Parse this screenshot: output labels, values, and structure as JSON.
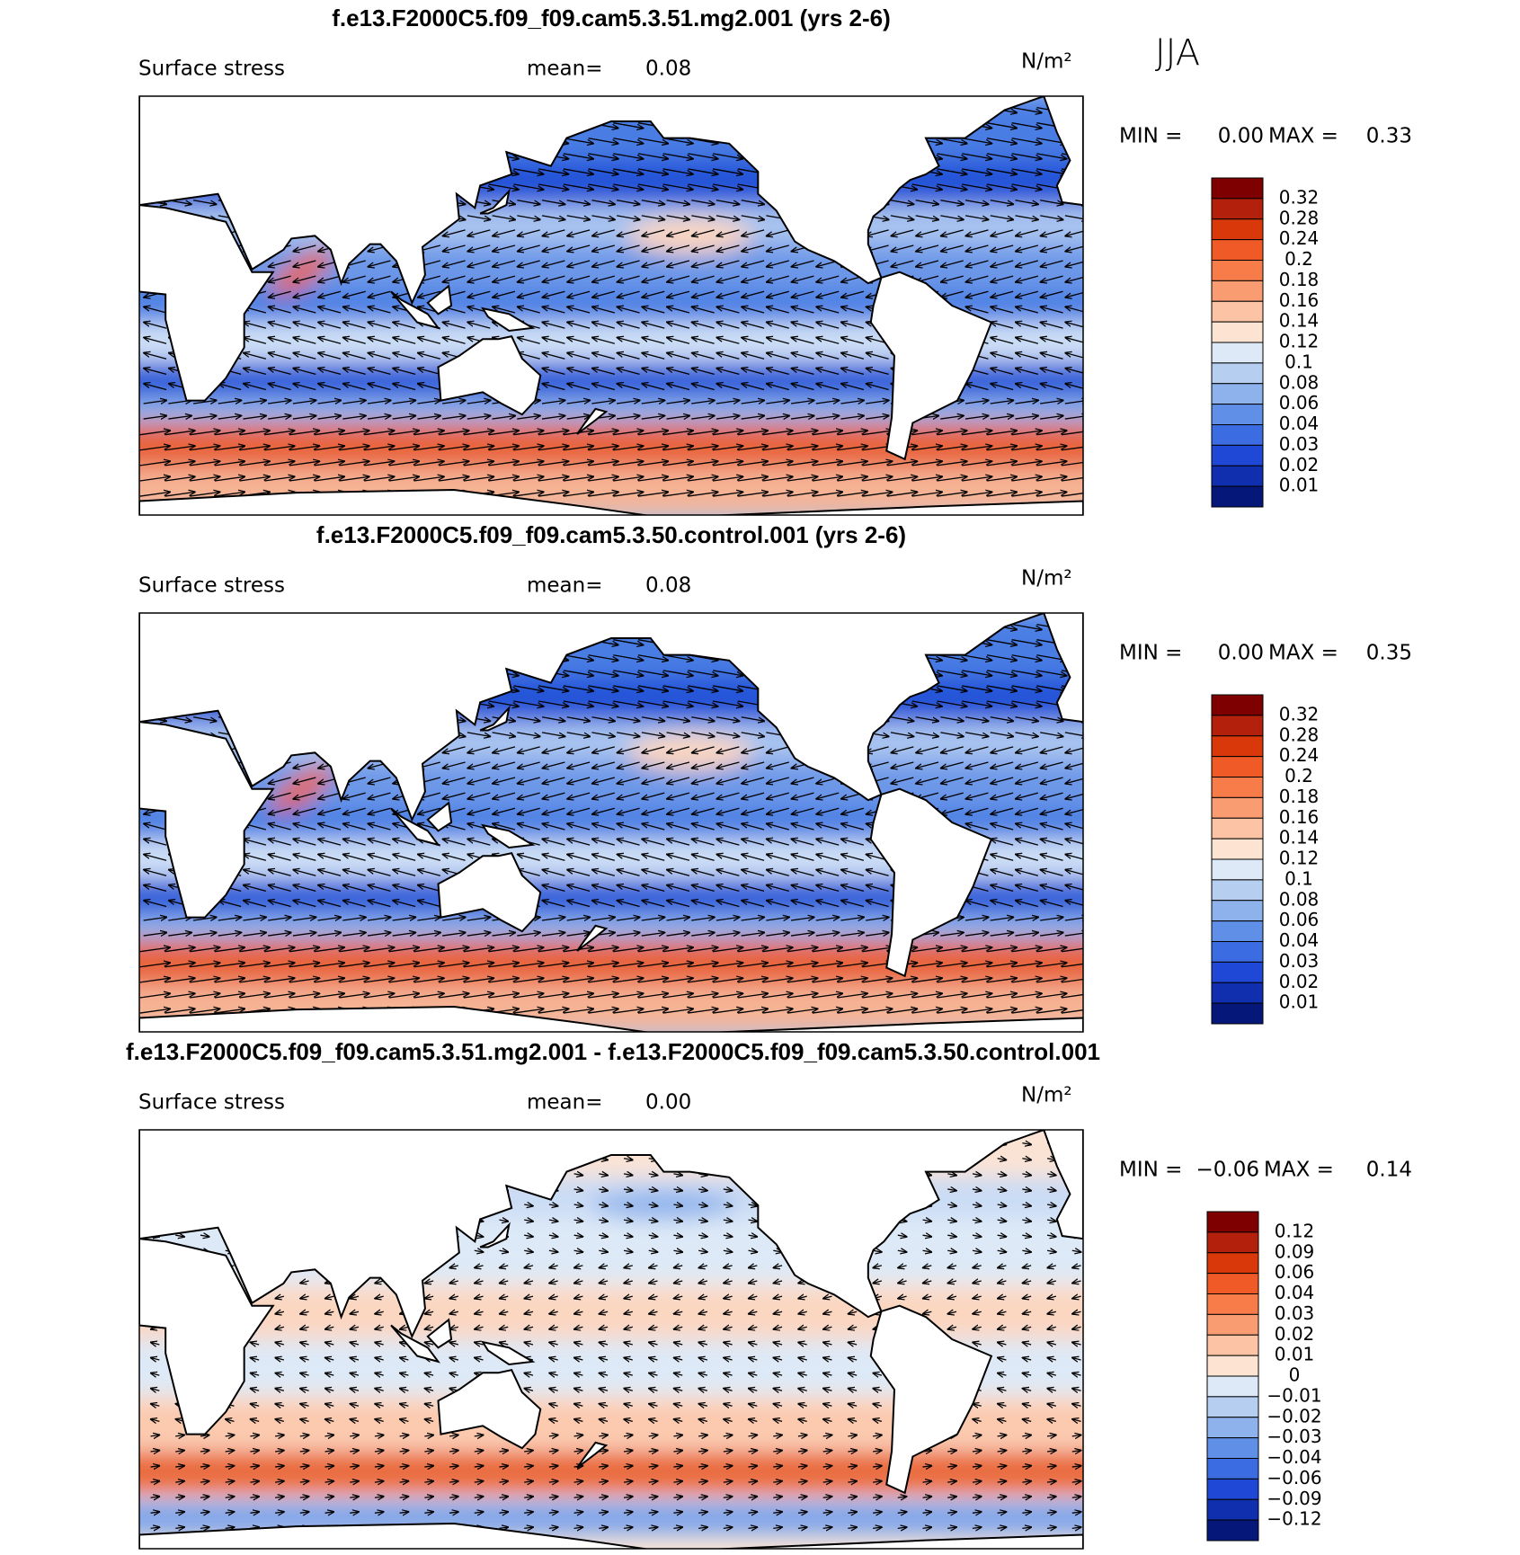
{
  "season": "JJA",
  "panels": [
    {
      "title": "f.e13.F2000C5.f09_f09.cam5.3.51.mg2.001 (yrs 2-6)",
      "field": "Surface stress",
      "mean_label": "mean=",
      "mean": "0.08",
      "units": "N/m²",
      "min_label": "MIN =",
      "min": "0.00",
      "max_label": "MAX =",
      "max": "0.33",
      "colorbar": {
        "labels": [
          "0.32",
          "0.28",
          "0.24",
          "0.2",
          "0.18",
          "0.16",
          "0.14",
          "0.12",
          "0.1",
          "0.08",
          "0.06",
          "0.04",
          "0.03",
          "0.02",
          "0.01"
        ],
        "colors": [
          "#7f0000",
          "#b3200c",
          "#d9380b",
          "#ef5a26",
          "#f77c4a",
          "#f99c72",
          "#fcc3a4",
          "#fde4d2",
          "#dde9f7",
          "#b6cff1",
          "#8eb2ec",
          "#5f8fe6",
          "#3c6ce2",
          "#1f48d6",
          "#0f2fae",
          "#06177a"
        ]
      }
    },
    {
      "title": "f.e13.F2000C5.f09_f09.cam5.3.50.control.001 (yrs 2-6)",
      "field": "Surface stress",
      "mean_label": "mean=",
      "mean": "0.08",
      "units": "N/m²",
      "min_label": "MIN =",
      "min": "0.00",
      "max_label": "MAX =",
      "max": "0.35",
      "colorbar": {
        "labels": [
          "0.32",
          "0.28",
          "0.24",
          "0.2",
          "0.18",
          "0.16",
          "0.14",
          "0.12",
          "0.1",
          "0.08",
          "0.06",
          "0.04",
          "0.03",
          "0.02",
          "0.01"
        ],
        "colors": [
          "#7f0000",
          "#b3200c",
          "#d9380b",
          "#ef5a26",
          "#f77c4a",
          "#f99c72",
          "#fcc3a4",
          "#fde4d2",
          "#dde9f7",
          "#b6cff1",
          "#8eb2ec",
          "#5f8fe6",
          "#3c6ce2",
          "#1f48d6",
          "#0f2fae",
          "#06177a"
        ]
      }
    },
    {
      "title": "f.e13.F2000C5.f09_f09.cam5.3.51.mg2.001 - f.e13.F2000C5.f09_f09.cam5.3.50.control.001",
      "field": "Surface stress",
      "mean_label": "mean=",
      "mean": "0.00",
      "units": "N/m²",
      "min_label": "MIN =",
      "min": "−0.06",
      "max_label": "MAX =",
      "max": "0.14",
      "colorbar": {
        "labels": [
          "0.12",
          "0.09",
          "0.06",
          "0.04",
          "0.03",
          "0.02",
          "0.01",
          "0",
          "−0.01",
          "−0.02",
          "−0.03",
          "−0.04",
          "−0.06",
          "−0.09",
          "−0.12"
        ],
        "colors": [
          "#7f0000",
          "#b3200c",
          "#d9380b",
          "#ef5a26",
          "#f77c4a",
          "#f99c72",
          "#fcc3a4",
          "#fde4d2",
          "#dde9f7",
          "#b6cff1",
          "#8eb2ec",
          "#5f8fe6",
          "#3c6ce2",
          "#1f48d6",
          "#0f2fae",
          "#06177a"
        ]
      }
    }
  ]
}
